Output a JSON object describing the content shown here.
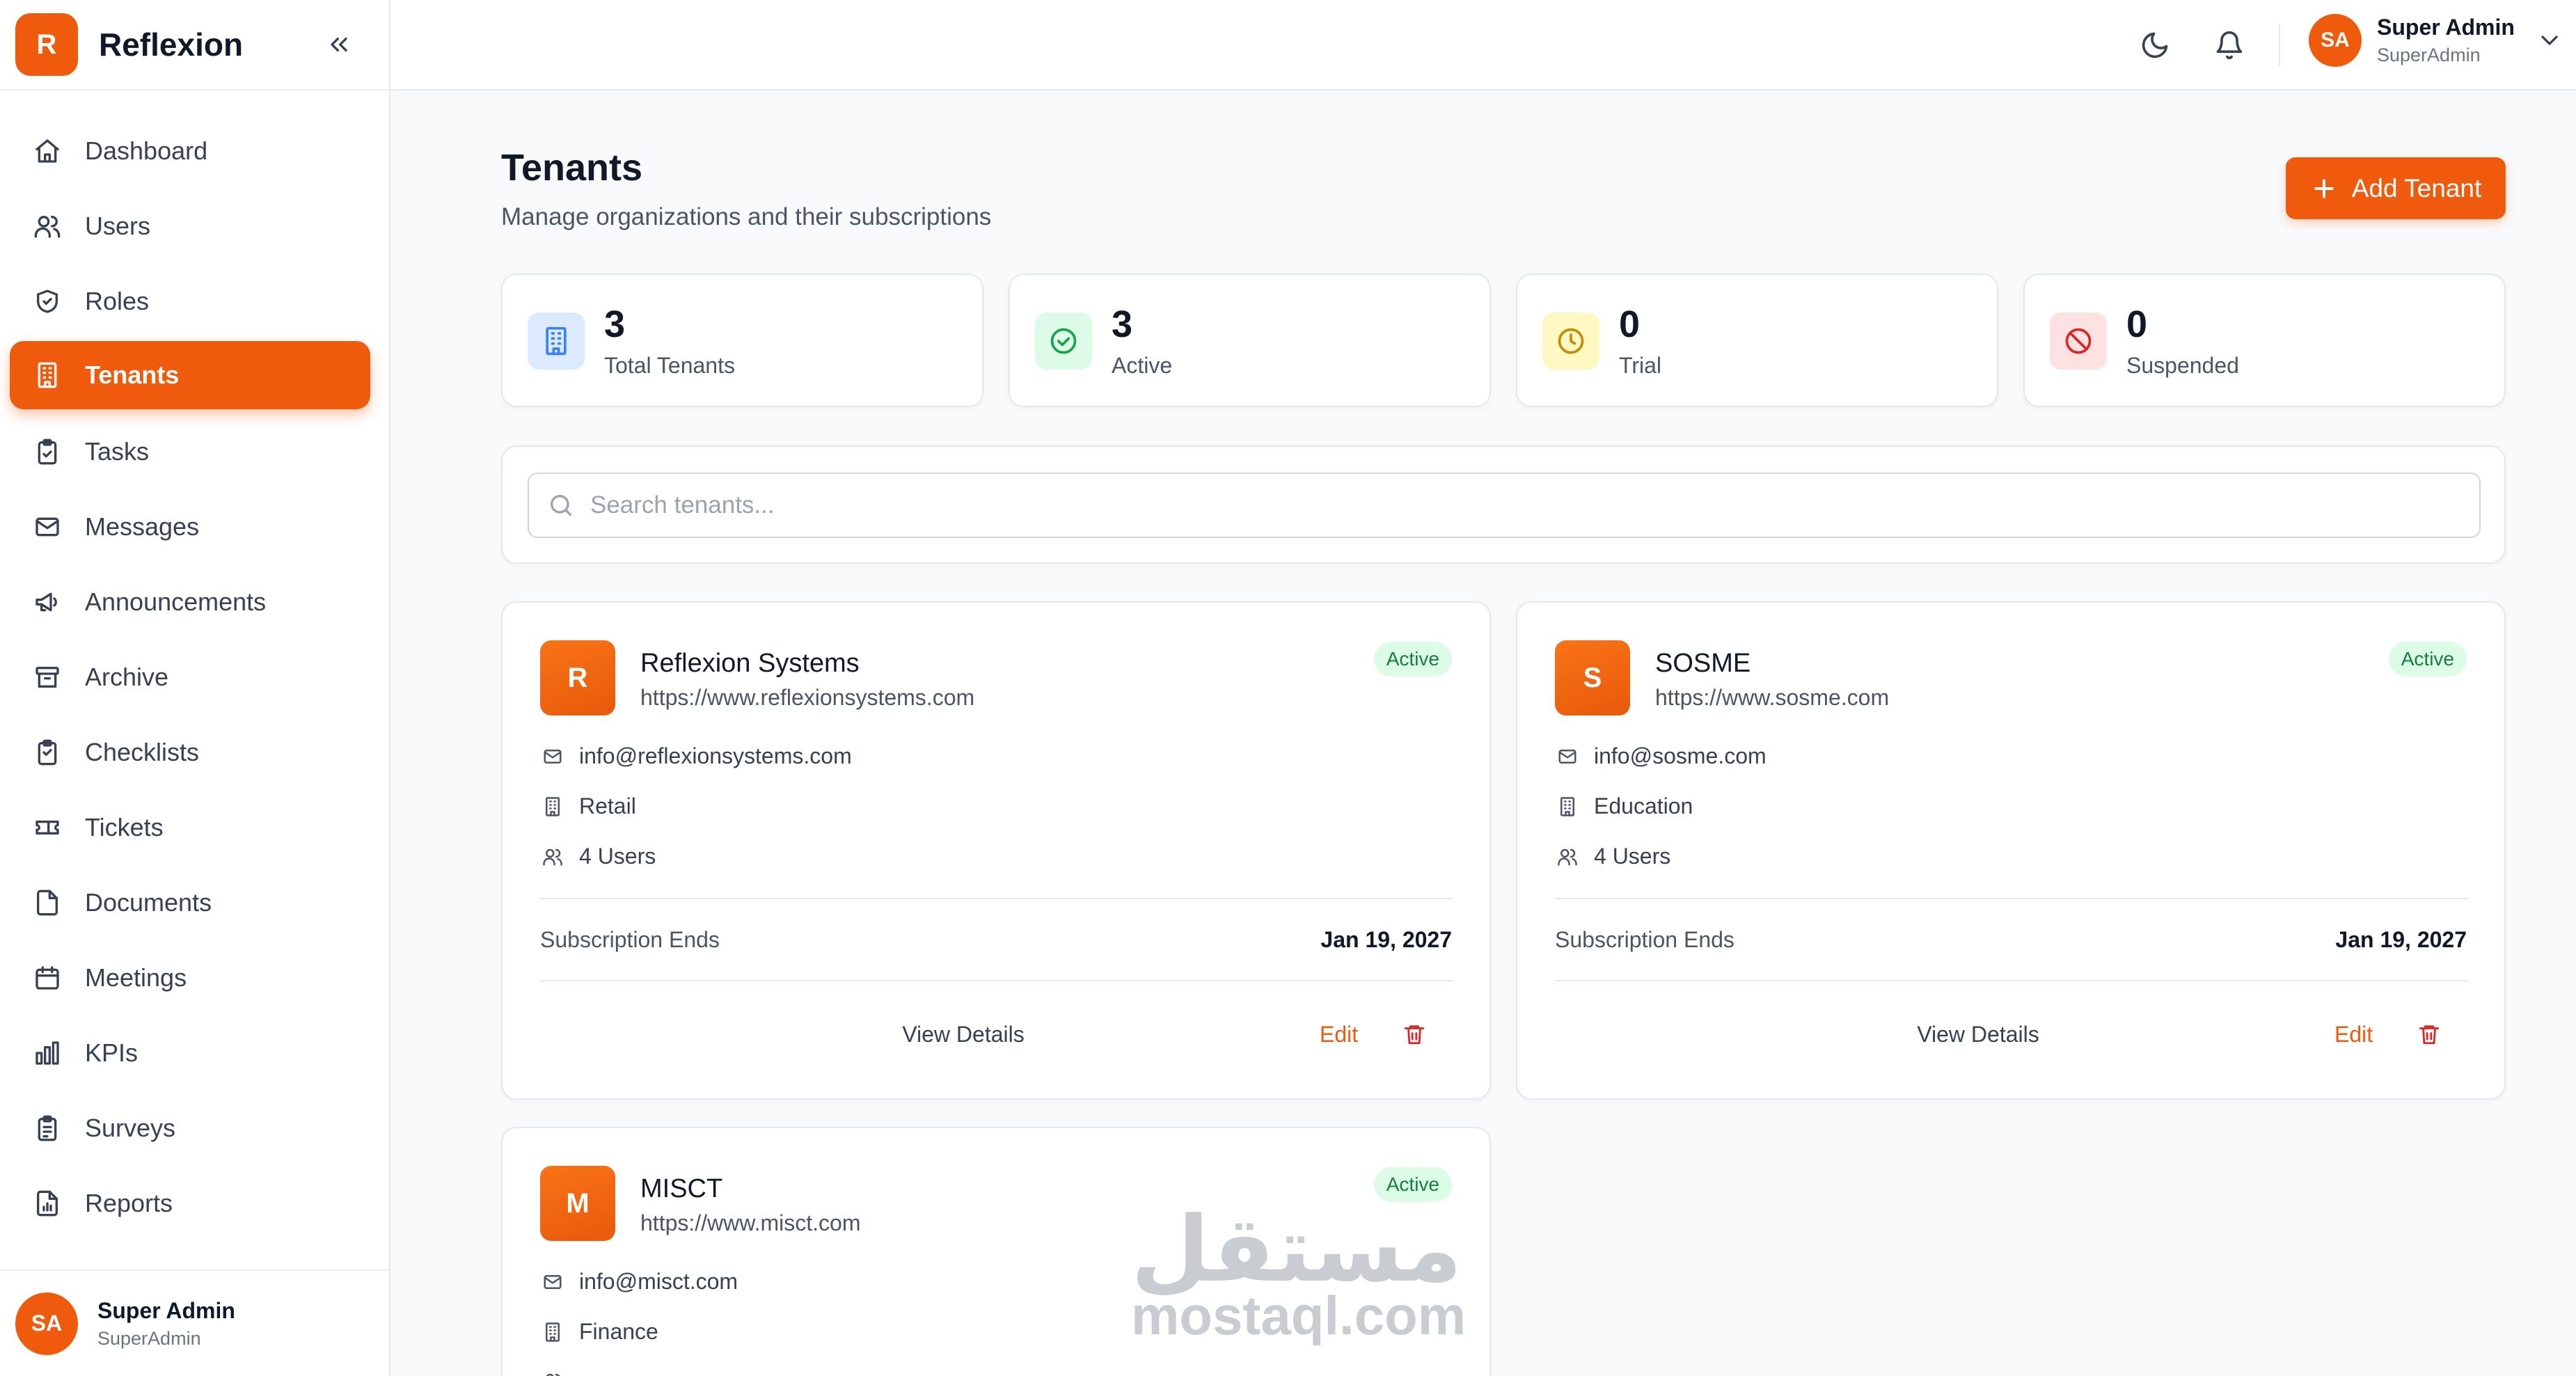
{
  "sidebar": {
    "brand": {
      "logo_letter": "R",
      "name": "Reflexion"
    },
    "items": [
      {
        "label": "Dashboard",
        "icon": "home-icon"
      },
      {
        "label": "Users",
        "icon": "users-icon"
      },
      {
        "label": "Roles",
        "icon": "shield-icon"
      },
      {
        "label": "Tenants",
        "icon": "building-icon",
        "active": true
      },
      {
        "label": "Tasks",
        "icon": "clipboard-check-icon"
      },
      {
        "label": "Messages",
        "icon": "mail-icon"
      },
      {
        "label": "Announcements",
        "icon": "megaphone-icon"
      },
      {
        "label": "Archive",
        "icon": "archive-icon"
      },
      {
        "label": "Checklists",
        "icon": "clipboard-list-icon"
      },
      {
        "label": "Tickets",
        "icon": "ticket-icon"
      },
      {
        "label": "Documents",
        "icon": "file-icon"
      },
      {
        "label": "Meetings",
        "icon": "calendar-icon"
      },
      {
        "label": "KPIs",
        "icon": "bar-chart-icon"
      },
      {
        "label": "Surveys",
        "icon": "clipboard-survey-icon"
      },
      {
        "label": "Reports",
        "icon": "report-icon"
      }
    ],
    "footer": {
      "initials": "SA",
      "name": "Super Admin",
      "role": "SuperAdmin"
    }
  },
  "header": {
    "user": {
      "initials": "SA",
      "name": "Super Admin",
      "role": "SuperAdmin"
    }
  },
  "main": {
    "title": "Tenants",
    "subtitle": "Manage organizations and their subscriptions",
    "add_button_label": "Add Tenant",
    "stats": [
      {
        "value": "3",
        "label": "Total Tenants",
        "icon": "building-icon",
        "color": "#3b82f6",
        "bg": "#dbeafe"
      },
      {
        "value": "3",
        "label": "Active",
        "icon": "check-circle-icon",
        "color": "#16a34a",
        "bg": "#dcfce7"
      },
      {
        "value": "0",
        "label": "Trial",
        "icon": "clock-icon",
        "color": "#ca8a04",
        "bg": "#fef9c3"
      },
      {
        "value": "0",
        "label": "Suspended",
        "icon": "ban-icon",
        "color": "#dc2626",
        "bg": "#fee2e2"
      }
    ],
    "search": {
      "placeholder": "Search tenants...",
      "value": ""
    },
    "tenants": [
      {
        "logo_letter": "R",
        "name": "Reflexion Systems",
        "url": "https://www.reflexionsystems.com",
        "status": "Active",
        "email": "info@reflexionsystems.com",
        "industry": "Retail",
        "users": "4 Users",
        "subscription_label": "Subscription Ends",
        "subscription_date": "Jan 19, 2027",
        "view_label": "View Details",
        "edit_label": "Edit"
      },
      {
        "logo_letter": "S",
        "name": "SOSME",
        "url": "https://www.sosme.com",
        "status": "Active",
        "email": "info@sosme.com",
        "industry": "Education",
        "users": "4 Users",
        "subscription_label": "Subscription Ends",
        "subscription_date": "Jan 19, 2027",
        "view_label": "View Details",
        "edit_label": "Edit"
      },
      {
        "logo_letter": "M",
        "name": "MISCT",
        "url": "https://www.misct.com",
        "status": "Active",
        "email": "info@misct.com",
        "industry": "Finance"
      }
    ]
  },
  "watermark": {
    "arabic": "مستقل",
    "latin": "mostaql.com"
  },
  "colors": {
    "accent": "#ef5a0c",
    "active_badge_bg": "#dcfce7",
    "active_badge_text": "#15803d"
  }
}
